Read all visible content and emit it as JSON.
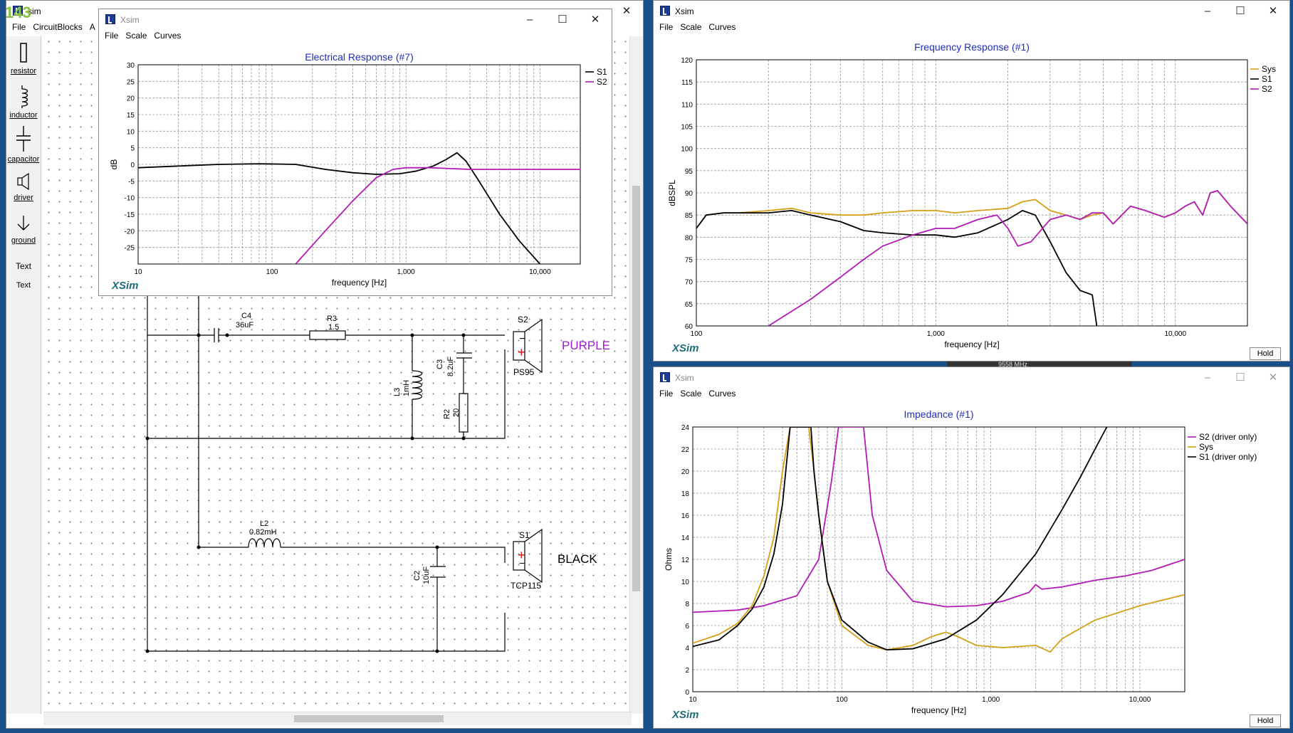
{
  "badge": "143",
  "main_window": {
    "title": "sim",
    "menu": [
      "File",
      "CircuitBlocks",
      "A"
    ],
    "tools": [
      {
        "label": "resistor",
        "icon": "resistor-icon"
      },
      {
        "label": "inductor",
        "icon": "inductor-icon"
      },
      {
        "label": "capacitor",
        "icon": "capacitor-icon"
      },
      {
        "label": "driver",
        "icon": "driver-icon"
      },
      {
        "label": "ground",
        "icon": "ground-icon"
      },
      {
        "label": "Text",
        "icon": "text-tool"
      },
      {
        "label": "Text",
        "icon": "text-tool"
      }
    ],
    "circuit": {
      "c4": {
        "name": "C4",
        "value": "36uF"
      },
      "r3": {
        "name": "R3",
        "value": "1.5"
      },
      "s2": {
        "name": "S2",
        "model": "PS95",
        "color_label": "PURPLE"
      },
      "c3": {
        "name": "C3",
        "value": "8.2uF"
      },
      "l3": {
        "name": "L3",
        "value": "1mH"
      },
      "r2": {
        "name": "R2",
        "value": "20"
      },
      "l2": {
        "name": "L2",
        "value": "0.82mH"
      },
      "c2": {
        "name": "C2",
        "value": "10uF"
      },
      "s1": {
        "name": "S1",
        "model": "TCP115",
        "color_label": "BLACK"
      }
    }
  },
  "windows": {
    "electrical": {
      "title": "Xsim",
      "menu": [
        "File",
        "Scale",
        "Curves"
      ],
      "brand": "XSim"
    },
    "frequency": {
      "title": "Xsim",
      "menu": [
        "File",
        "Scale",
        "Curves"
      ],
      "brand": "XSim",
      "hold": "Hold"
    },
    "impedance": {
      "title": "Xsim",
      "menu": [
        "File",
        "Scale",
        "Curves"
      ],
      "brand": "XSim",
      "hold": "Hold"
    }
  },
  "taskbar_fragment": "9558 MHz",
  "colors": {
    "sys": "#d4a017",
    "s1": "#000000",
    "s2": "#b21bb5",
    "title_blue": "#1f2fb8"
  },
  "chart_data": [
    {
      "id": "electrical",
      "type": "line",
      "title": "Electrical Response (#7)",
      "xlabel": "frequency [Hz]",
      "ylabel": "dB",
      "xscale": "log",
      "xlim": [
        10,
        20000
      ],
      "ylim": [
        -30,
        30
      ],
      "xticks": [
        {
          "v": 10,
          "t": "10"
        },
        {
          "v": 100,
          "t": "100"
        },
        {
          "v": 1000,
          "t": "1,000"
        },
        {
          "v": 10000,
          "t": "10,000"
        }
      ],
      "yticks": [
        30,
        25,
        20,
        15,
        10,
        5,
        0,
        -5,
        -10,
        -15,
        -20,
        -25
      ],
      "grid": true,
      "legend": "top-right",
      "series": [
        {
          "name": "S1",
          "color": "#000000",
          "x": [
            10,
            20,
            40,
            80,
            150,
            250,
            400,
            600,
            900,
            1200,
            1600,
            2000,
            2400,
            2800,
            3500,
            5000,
            7000,
            10000
          ],
          "y": [
            -1,
            -0.5,
            0,
            0.2,
            0,
            -1.5,
            -2.5,
            -3,
            -2.8,
            -2,
            -0.5,
            1.5,
            3.5,
            1,
            -5,
            -15,
            -23,
            -30
          ]
        },
        {
          "name": "S2",
          "color": "#b21bb5",
          "x": [
            150,
            250,
            400,
            600,
            800,
            1000,
            1500,
            2000,
            3000,
            5000,
            10000,
            20000
          ],
          "y": [
            -30,
            -20,
            -11,
            -4,
            -1.5,
            -1,
            -1,
            -1.2,
            -1.5,
            -1.5,
            -1.5,
            -1.5
          ]
        }
      ]
    },
    {
      "id": "frequency",
      "type": "line",
      "title": "Frequency Response (#1)",
      "xlabel": "frequency [Hz]",
      "ylabel": "dBSPL",
      "xscale": "log",
      "xlim": [
        100,
        20000
      ],
      "ylim": [
        60,
        120
      ],
      "xticks": [
        {
          "v": 100,
          "t": "100"
        },
        {
          "v": 1000,
          "t": "1,000"
        },
        {
          "v": 10000,
          "t": "10,000"
        }
      ],
      "yticks": [
        120,
        115,
        110,
        105,
        100,
        95,
        90,
        85,
        80,
        75,
        70,
        65,
        60
      ],
      "grid": true,
      "legend": "top-right",
      "series": [
        {
          "name": "Sys",
          "color": "#d4a017",
          "x": [
            100,
            110,
            130,
            150,
            200,
            250,
            300,
            400,
            500,
            600,
            800,
            1000,
            1200,
            1500,
            2000,
            2300,
            2600,
            3000,
            3500,
            4000,
            4500,
            5000,
            5500,
            6500,
            7500,
            9000,
            10000,
            11000,
            12000,
            13000,
            14000,
            15000,
            17000,
            20000
          ],
          "y": [
            82,
            85,
            85.5,
            85.5,
            86,
            86.5,
            85.5,
            85,
            85,
            85.5,
            86,
            86,
            85.5,
            86,
            86.5,
            88,
            88.5,
            86,
            85,
            84,
            85,
            85.5,
            83,
            87,
            86,
            84.5,
            85.5,
            87,
            88,
            85,
            90,
            90.5,
            87,
            83
          ]
        },
        {
          "name": "S1",
          "color": "#000000",
          "x": [
            100,
            110,
            130,
            150,
            200,
            250,
            300,
            400,
            500,
            600,
            800,
            1000,
            1200,
            1500,
            2000,
            2300,
            2600,
            3000,
            3500,
            4000,
            4500,
            4700
          ],
          "y": [
            82,
            85,
            85.5,
            85.5,
            85.5,
            86,
            85,
            83.5,
            81.5,
            81,
            80.5,
            80.5,
            80,
            81,
            84,
            86,
            85,
            79,
            72,
            68,
            67,
            60
          ]
        },
        {
          "name": "S2",
          "color": "#b21bb5",
          "x": [
            200,
            300,
            400,
            500,
            600,
            800,
            1000,
            1200,
            1500,
            1800,
            2000,
            2200,
            2500,
            3000,
            3500,
            4000,
            4500,
            5000,
            5500,
            6500,
            7500,
            9000,
            10000,
            11000,
            12000,
            13000,
            14000,
            15000,
            17000,
            20000
          ],
          "y": [
            60,
            66,
            71,
            75,
            78,
            80.5,
            82,
            82,
            84,
            85,
            82,
            78,
            79,
            84,
            85,
            84,
            85.5,
            85.5,
            83,
            87,
            86,
            84.5,
            85.5,
            87,
            88,
            85,
            90,
            90.5,
            87,
            83
          ]
        }
      ]
    },
    {
      "id": "impedance",
      "type": "line",
      "title": "Impedance (#1)",
      "xlabel": "frequency [Hz]",
      "ylabel": "Ohms",
      "xscale": "log",
      "xlim": [
        10,
        20000
      ],
      "ylim": [
        0,
        24
      ],
      "xticks": [
        {
          "v": 10,
          "t": "10"
        },
        {
          "v": 100,
          "t": "100"
        },
        {
          "v": 1000,
          "t": "1,000"
        },
        {
          "v": 10000,
          "t": "10,000"
        }
      ],
      "yticks": [
        24,
        22,
        20,
        18,
        16,
        14,
        12,
        10,
        8,
        6,
        4,
        2,
        0
      ],
      "grid": true,
      "legend": "top-right",
      "series": [
        {
          "name": "S2 (driver only)",
          "color": "#b21bb5",
          "x": [
            10,
            20,
            30,
            50,
            70,
            85,
            95,
            100,
            120,
            140,
            160,
            200,
            300,
            500,
            800,
            1200,
            1800,
            2000,
            2200,
            3000,
            5000,
            8000,
            12000,
            20000
          ],
          "y": [
            7.2,
            7.4,
            7.8,
            8.7,
            12,
            19,
            24,
            24,
            24,
            24,
            16,
            11,
            8.2,
            7.7,
            7.8,
            8.2,
            9,
            9.7,
            9.3,
            9.5,
            10.1,
            10.5,
            11,
            12
          ]
        },
        {
          "name": "Sys",
          "color": "#d4a017",
          "x": [
            10,
            15,
            20,
            25,
            30,
            35,
            40,
            45,
            48,
            60,
            65,
            70,
            80,
            100,
            150,
            200,
            300,
            400,
            500,
            600,
            800,
            1200,
            2000,
            2500,
            3000,
            5000,
            10000,
            20000
          ],
          "y": [
            4.4,
            5.2,
            6.2,
            7.8,
            10.5,
            14,
            20,
            24,
            24,
            24,
            20,
            16,
            10,
            6,
            4.2,
            3.8,
            4.2,
            5,
            5.4,
            5,
            4.2,
            4,
            4.2,
            3.6,
            4.8,
            6.5,
            7.8,
            8.8
          ]
        },
        {
          "name": "S1 (driver only)",
          "color": "#000000",
          "x": [
            10,
            15,
            20,
            25,
            30,
            35,
            40,
            45,
            50,
            52,
            62,
            65,
            70,
            80,
            100,
            150,
            200,
            300,
            500,
            800,
            1200,
            2000,
            3000,
            4000,
            5000,
            6000
          ],
          "y": [
            4.1,
            4.7,
            6,
            7.5,
            9.5,
            12.5,
            17,
            24,
            24,
            24,
            24,
            20,
            16,
            10,
            6.5,
            4.5,
            3.8,
            3.9,
            4.8,
            6.5,
            8.8,
            12.5,
            16.5,
            19.5,
            22,
            24
          ]
        }
      ]
    }
  ]
}
